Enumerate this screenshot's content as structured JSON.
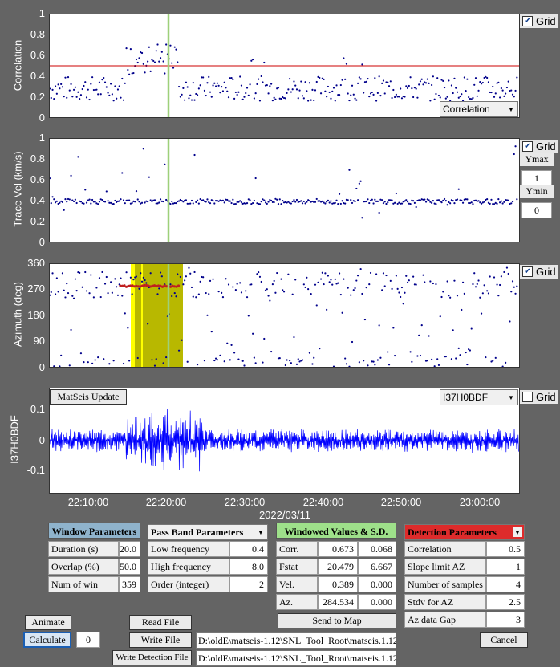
{
  "plots": {
    "correlation": {
      "ylabel": "Correlation",
      "ticks": [
        "1",
        "0.8",
        "0.6",
        "0.4",
        "0.2",
        "0"
      ],
      "grid_label": "Grid",
      "grid_checked": true,
      "selector": "Correlation",
      "threshold": 0.5,
      "marker_min": 22.333
    },
    "tracevel": {
      "ylabel": "Trace Vel (km/s)",
      "ticks": [
        "1",
        "0.8",
        "0.6",
        "0.4",
        "0.2",
        "0"
      ],
      "grid_label": "Grid",
      "grid_checked": true,
      "ymax_label": "Ymax",
      "ymax_value": "1",
      "ymin_label": "Ymin",
      "ymin_value": "0"
    },
    "azimuth": {
      "ylabel": "Azimuth (deg)",
      "ticks": [
        "360",
        "270",
        "180",
        "90",
        "0"
      ],
      "grid_label": "Grid",
      "grid_checked": true
    },
    "waveform": {
      "ylabel": "I37H0BDF",
      "ticks": [
        "0.1",
        "0",
        "-0.1"
      ],
      "grid_label": "Grid",
      "grid_checked": false,
      "selector": "I37H0BDF",
      "update_button": "MatSeis Update"
    }
  },
  "xaxis": {
    "ticks": [
      "22:10:00",
      "22:20:00",
      "22:30:00",
      "22:40:00",
      "22:50:00",
      "23:00:00"
    ],
    "date": "2022/03/11"
  },
  "window_params": {
    "title": "Window Parameters",
    "rows": [
      {
        "label": "Duration (s)",
        "value": "20.0"
      },
      {
        "label": "Overlap (%)",
        "value": "50.0"
      },
      {
        "label": "Num of win",
        "value": "359"
      }
    ]
  },
  "passband_params": {
    "title": "Pass Band Parameters",
    "rows": [
      {
        "label": "Low frequency (Hz)",
        "value": "0.4"
      },
      {
        "label": "High frequency (Hz)",
        "value": "8.0"
      },
      {
        "label": "Order (integer)",
        "value": "2"
      }
    ]
  },
  "windowed_values": {
    "title": "Windowed Values & S.D.",
    "rows": [
      {
        "label": "Corr.",
        "v1": "0.673",
        "v2": "0.068"
      },
      {
        "label": "Fstat",
        "v1": "20.479",
        "v2": "6.667"
      },
      {
        "label": "Vel.",
        "v1": "0.389",
        "v2": "0.000"
      },
      {
        "label": "Az.",
        "v1": "284.534",
        "v2": "0.000"
      }
    ],
    "send_button": "Send to Map"
  },
  "detection_params": {
    "title": "Detection Parameters",
    "rows": [
      {
        "label": "Correlation",
        "value": "0.5"
      },
      {
        "label": "Slope limit AZ",
        "value": "1"
      },
      {
        "label": "Number of samples",
        "value": "4"
      },
      {
        "label": "Stdv for AZ",
        "value": "2.5"
      },
      {
        "label": "Az data Gap",
        "value": "3"
      }
    ],
    "cancel_button": "Cancel"
  },
  "buttons": {
    "animate": "Animate",
    "calculate": "Calculate",
    "calc_value": "0",
    "read_file": "Read File",
    "write_file": "Write File",
    "write_detection": "Write Detection File"
  },
  "paths": {
    "write_path": "D:\\oldE\\matseis-1.12\\SNL_Tool_Root\\matseis.1.12",
    "detection_path": "D:\\oldE\\matseis-1.12\\SNL_Tool_Root\\matseis.1.12"
  },
  "colors": {
    "points": "#00008b",
    "threshold": "#cc0000",
    "marker": "#9ed07a",
    "band_yellow": "#ffff00",
    "band_olive": "#b8b800",
    "detection": "#c02020",
    "waveform": "#0000ff",
    "window_head": "#8fb3cc",
    "passband_head": "#ffffff",
    "windowed_head": "#9ee08a",
    "detection_head": "#dd2b2b"
  }
}
